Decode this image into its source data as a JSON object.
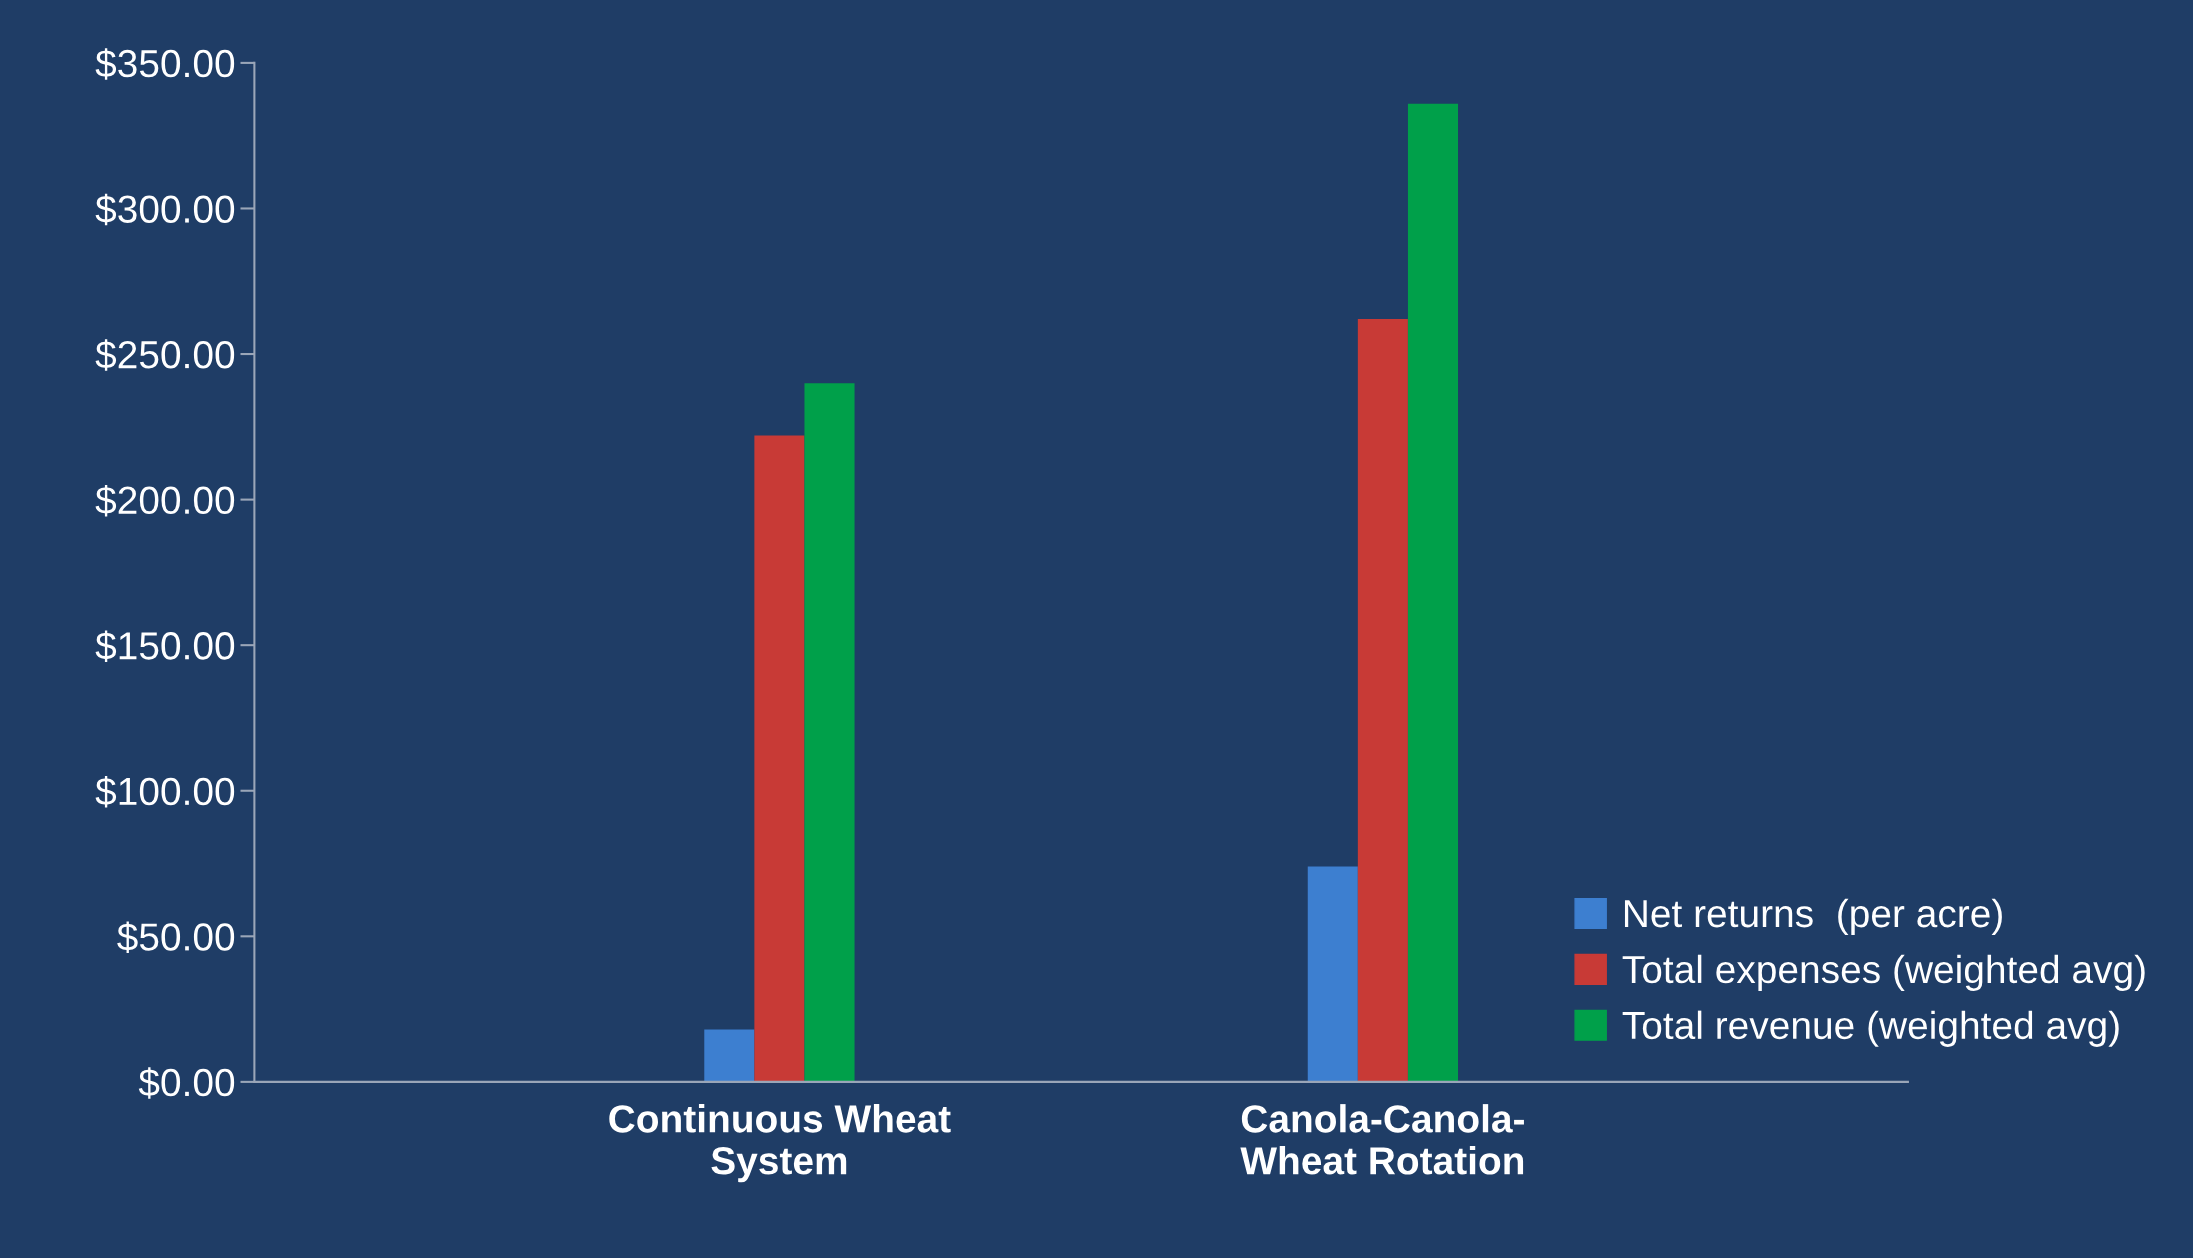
{
  "chart_data": {
    "type": "bar",
    "categories": [
      "Continuous Wheat\nSystem",
      "Canola-Canola-\nWheat Rotation"
    ],
    "series": [
      {
        "name": "Net returns  (per acre)",
        "color": "#3d7fd0",
        "values": [
          18,
          74
        ]
      },
      {
        "name": "Total expenses (weighted avg)",
        "color": "#c83a36",
        "values": [
          222,
          262
        ]
      },
      {
        "name": "Total revenue (weighted avg)",
        "color": "#00a04a",
        "values": [
          240,
          336
        ]
      }
    ],
    "ylim": [
      0,
      350
    ],
    "yticks": [
      {
        "value": 0,
        "label": "$0.00"
      },
      {
        "value": 50,
        "label": "$50.00"
      },
      {
        "value": 100,
        "label": "$100.00"
      },
      {
        "value": 150,
        "label": "$150.00"
      },
      {
        "value": 200,
        "label": "$200.00"
      },
      {
        "value": 250,
        "label": "$250.00"
      },
      {
        "value": 300,
        "label": "$300.00"
      },
      {
        "value": 350,
        "label": "$350.00"
      }
    ],
    "grid": false,
    "legend": "bottom right"
  }
}
